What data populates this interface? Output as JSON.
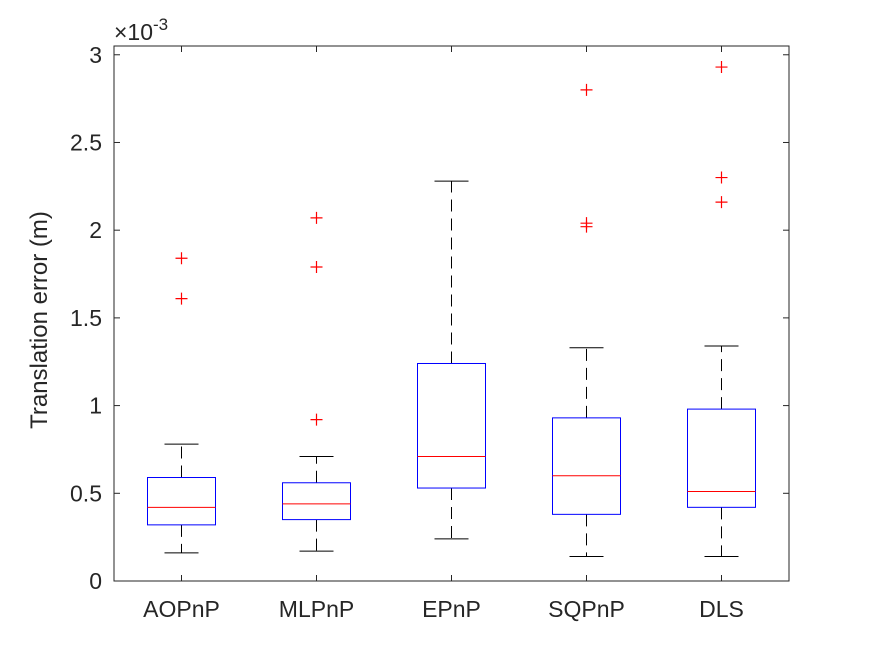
{
  "chart_data": {
    "type": "box",
    "ylabel": "Translation error (m)",
    "y_exponent_label": "×10",
    "y_exponent_power": "-3",
    "ylim": [
      0,
      3.05
    ],
    "yticks": [
      0,
      0.5,
      1,
      1.5,
      2,
      2.5,
      3
    ],
    "ytick_labels": [
      "0",
      "0.5",
      "1",
      "1.5",
      "2",
      "2.5",
      "3"
    ],
    "categories": [
      "AOPnP",
      "MLPnP",
      "EPnP",
      "SQPnP",
      "DLS"
    ],
    "boxes": [
      {
        "name": "AOPnP",
        "whisker_low": 0.16,
        "q1": 0.32,
        "median": 0.42,
        "q3": 0.59,
        "whisker_high": 0.78,
        "outliers": [
          1.61,
          1.84
        ]
      },
      {
        "name": "MLPnP",
        "whisker_low": 0.17,
        "q1": 0.35,
        "median": 0.44,
        "q3": 0.56,
        "whisker_high": 0.71,
        "outliers": [
          0.92,
          1.79,
          2.07
        ]
      },
      {
        "name": "EPnP",
        "whisker_low": 0.24,
        "q1": 0.53,
        "median": 0.71,
        "q3": 1.24,
        "whisker_high": 2.28,
        "outliers": []
      },
      {
        "name": "SQPnP",
        "whisker_low": 0.14,
        "q1": 0.38,
        "median": 0.6,
        "q3": 0.93,
        "whisker_high": 1.33,
        "outliers": [
          2.02,
          2.04,
          2.8
        ]
      },
      {
        "name": "DLS",
        "whisker_low": 0.14,
        "q1": 0.42,
        "median": 0.51,
        "q3": 0.98,
        "whisker_high": 1.34,
        "outliers": [
          2.16,
          2.3,
          2.93
        ]
      }
    ],
    "colors": {
      "box": "#0000ff",
      "median": "#ff0000",
      "whisker": "#000000",
      "outlier": "#ff0000",
      "axis": "#262626"
    }
  }
}
